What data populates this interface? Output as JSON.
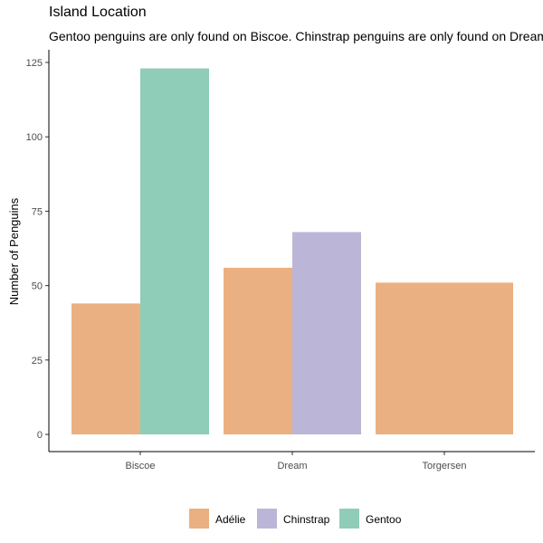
{
  "chart_data": {
    "type": "bar",
    "title": "Island Location",
    "subtitle": "Gentoo penguins are only found on Biscoe. Chinstrap penguins are only found on Dream.",
    "xlabel": "",
    "ylabel": "Number of Penguins",
    "categories": [
      "Biscoe",
      "Dream",
      "Torgersen"
    ],
    "ylim": [
      0,
      130
    ],
    "yticks": [
      0,
      25,
      50,
      75,
      100,
      125
    ],
    "grid": false,
    "legend_position": "bottom",
    "bars": [
      {
        "category": "Biscoe",
        "series": "Adélie",
        "value": 44
      },
      {
        "category": "Biscoe",
        "series": "Gentoo",
        "value": 123
      },
      {
        "category": "Dream",
        "series": "Adélie",
        "value": 56
      },
      {
        "category": "Dream",
        "series": "Chinstrap",
        "value": 68
      },
      {
        "category": "Torgersen",
        "series": "Adélie",
        "value": 51
      }
    ],
    "series": [
      {
        "name": "Adélie",
        "color": "#ebb081"
      },
      {
        "name": "Chinstrap",
        "color": "#bbb6d8"
      },
      {
        "name": "Gentoo",
        "color": "#8fcdb8"
      }
    ]
  }
}
